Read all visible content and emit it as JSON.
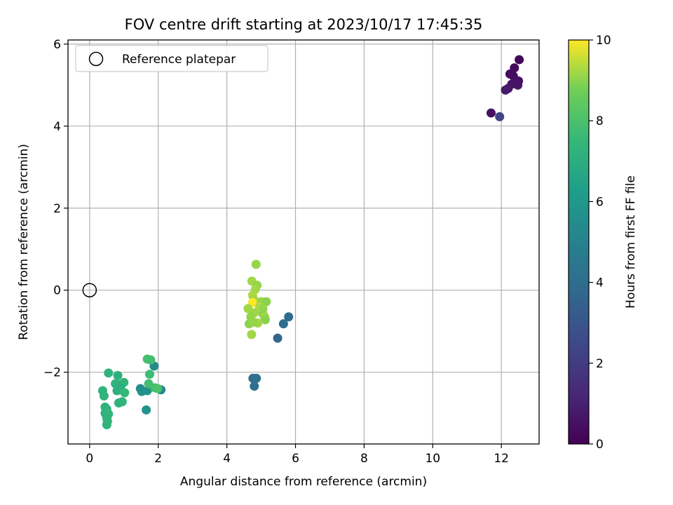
{
  "chart_data": {
    "type": "scatter",
    "title": "FOV centre drift starting at 2023/10/17 17:45:35",
    "xlabel": "Angular distance from reference (arcmin)",
    "ylabel": "Rotation from reference (arcmin)",
    "xlim": [
      -0.63,
      13.1
    ],
    "ylim": [
      -3.75,
      6.1
    ],
    "xticks": [
      0,
      2,
      4,
      6,
      8,
      10,
      12
    ],
    "yticks": [
      -2,
      0,
      2,
      4,
      6
    ],
    "xtick_labels": [
      "0",
      "2",
      "4",
      "6",
      "8",
      "10",
      "12"
    ],
    "ytick_labels": [
      "−2",
      "0",
      "2",
      "4",
      "6"
    ],
    "grid": true,
    "legend": {
      "placement": "top-left",
      "entries": [
        {
          "label": "Reference platepar",
          "marker": "open-circle"
        }
      ]
    },
    "reference": {
      "x": 0,
      "y": 0
    },
    "colorbar": {
      "label": "Hours from first FF file",
      "range": [
        0,
        10
      ],
      "ticks": [
        0,
        2,
        4,
        6,
        8,
        10
      ],
      "tick_labels": [
        "0",
        "2",
        "4",
        "6",
        "8",
        "10"
      ],
      "colormap": "viridis"
    },
    "points": [
      {
        "x": 12.52,
        "y": 5.62,
        "h": 0.2
      },
      {
        "x": 12.38,
        "y": 5.42,
        "h": 0.3
      },
      {
        "x": 12.25,
        "y": 5.27,
        "h": 0.3
      },
      {
        "x": 12.35,
        "y": 5.22,
        "h": 0.4
      },
      {
        "x": 12.5,
        "y": 5.1,
        "h": 0.5
      },
      {
        "x": 12.42,
        "y": 5.05,
        "h": 0.5
      },
      {
        "x": 12.3,
        "y": 5.02,
        "h": 0.6
      },
      {
        "x": 12.48,
        "y": 5.0,
        "h": 0.6
      },
      {
        "x": 12.2,
        "y": 4.92,
        "h": 0.7
      },
      {
        "x": 12.12,
        "y": 4.88,
        "h": 0.8
      },
      {
        "x": 11.7,
        "y": 4.32,
        "h": 0.5
      },
      {
        "x": 11.95,
        "y": 4.23,
        "h": 2.3
      },
      {
        "x": 5.8,
        "y": -0.65,
        "h": 3.9
      },
      {
        "x": 5.65,
        "y": -0.82,
        "h": 4.0
      },
      {
        "x": 5.48,
        "y": -1.17,
        "h": 3.7
      },
      {
        "x": 4.76,
        "y": -2.15,
        "h": 4.1
      },
      {
        "x": 4.86,
        "y": -2.15,
        "h": 4.2
      },
      {
        "x": 4.8,
        "y": -2.34,
        "h": 4.2
      },
      {
        "x": 1.88,
        "y": -1.85,
        "h": 5.4
      },
      {
        "x": 2.08,
        "y": -2.43,
        "h": 5.3
      },
      {
        "x": 1.48,
        "y": -2.4,
        "h": 5.5
      },
      {
        "x": 1.52,
        "y": -2.47,
        "h": 5.6
      },
      {
        "x": 1.68,
        "y": -2.45,
        "h": 5.7
      },
      {
        "x": 1.65,
        "y": -2.92,
        "h": 5.8
      },
      {
        "x": 0.55,
        "y": -2.02,
        "h": 7.2
      },
      {
        "x": 0.82,
        "y": -2.08,
        "h": 7.1
      },
      {
        "x": 0.75,
        "y": -2.28,
        "h": 7.3
      },
      {
        "x": 0.85,
        "y": -2.3,
        "h": 7.2
      },
      {
        "x": 1.0,
        "y": -2.25,
        "h": 7.4
      },
      {
        "x": 0.9,
        "y": -2.38,
        "h": 7.0
      },
      {
        "x": 0.8,
        "y": -2.45,
        "h": 7.1
      },
      {
        "x": 0.38,
        "y": -2.45,
        "h": 7.3
      },
      {
        "x": 0.42,
        "y": -2.58,
        "h": 7.3
      },
      {
        "x": 1.02,
        "y": -2.5,
        "h": 7.5
      },
      {
        "x": 0.95,
        "y": -2.72,
        "h": 7.4
      },
      {
        "x": 0.85,
        "y": -2.75,
        "h": 7.3
      },
      {
        "x": 0.45,
        "y": -2.85,
        "h": 7.3
      },
      {
        "x": 0.5,
        "y": -2.9,
        "h": 7.2
      },
      {
        "x": 0.45,
        "y": -3.0,
        "h": 7.3
      },
      {
        "x": 0.55,
        "y": -3.02,
        "h": 7.4
      },
      {
        "x": 0.5,
        "y": -3.12,
        "h": 7.2
      },
      {
        "x": 0.52,
        "y": -3.2,
        "h": 7.3
      },
      {
        "x": 0.5,
        "y": -3.28,
        "h": 7.3
      },
      {
        "x": 1.68,
        "y": -1.68,
        "h": 7.9
      },
      {
        "x": 1.78,
        "y": -1.7,
        "h": 7.8
      },
      {
        "x": 1.75,
        "y": -2.05,
        "h": 7.7
      },
      {
        "x": 1.72,
        "y": -2.28,
        "h": 7.8
      },
      {
        "x": 1.9,
        "y": -2.38,
        "h": 7.9
      },
      {
        "x": 1.98,
        "y": -2.4,
        "h": 8.0
      },
      {
        "x": 4.85,
        "y": 0.63,
        "h": 9.1
      },
      {
        "x": 4.73,
        "y": 0.22,
        "h": 9.2
      },
      {
        "x": 4.88,
        "y": 0.12,
        "h": 9.1
      },
      {
        "x": 4.83,
        "y": 0.02,
        "h": 9.2
      },
      {
        "x": 4.75,
        "y": -0.12,
        "h": 9.3
      },
      {
        "x": 4.78,
        "y": -0.22,
        "h": 9.2
      },
      {
        "x": 4.75,
        "y": -0.3,
        "h": 10.0
      },
      {
        "x": 5.0,
        "y": -0.28,
        "h": 9.1
      },
      {
        "x": 5.15,
        "y": -0.28,
        "h": 9.0
      },
      {
        "x": 4.62,
        "y": -0.45,
        "h": 9.2
      },
      {
        "x": 4.95,
        "y": -0.4,
        "h": 9.3
      },
      {
        "x": 5.05,
        "y": -0.45,
        "h": 9.1
      },
      {
        "x": 4.8,
        "y": -0.55,
        "h": 9.2
      },
      {
        "x": 5.05,
        "y": -0.58,
        "h": 9.0
      },
      {
        "x": 4.7,
        "y": -0.65,
        "h": 9.1
      },
      {
        "x": 5.1,
        "y": -0.65,
        "h": 9.2
      },
      {
        "x": 5.12,
        "y": -0.72,
        "h": 9.0
      },
      {
        "x": 4.65,
        "y": -0.82,
        "h": 9.0
      },
      {
        "x": 4.9,
        "y": -0.8,
        "h": 9.2
      },
      {
        "x": 4.78,
        "y": -0.78,
        "h": 9.1
      },
      {
        "x": 4.72,
        "y": -1.08,
        "h": 9.2
      }
    ]
  }
}
